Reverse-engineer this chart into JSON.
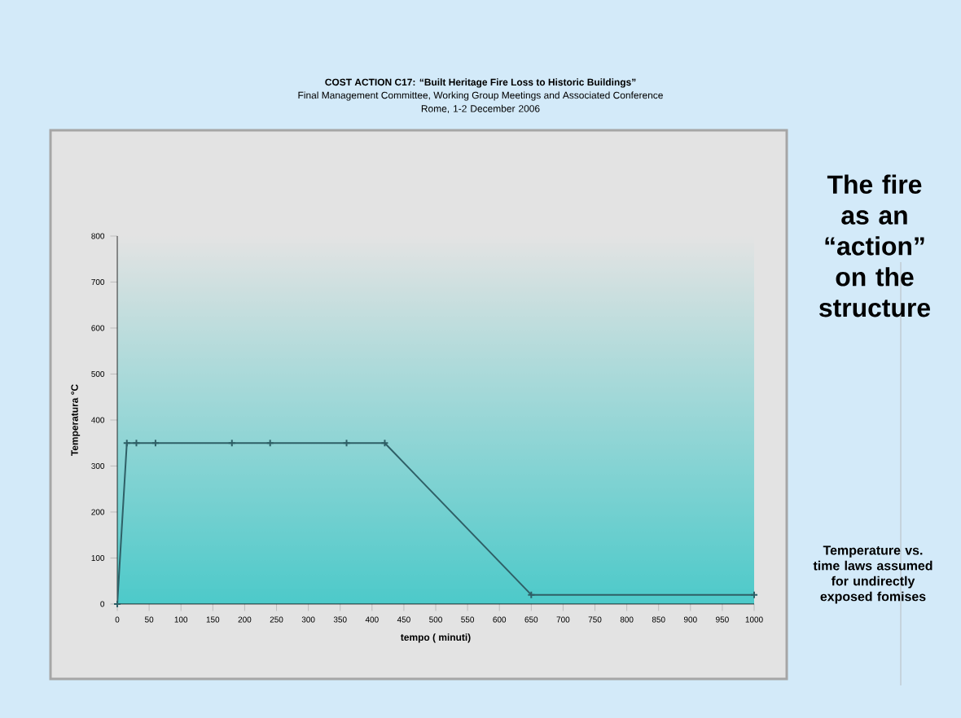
{
  "chart_data": {
    "type": "line",
    "title": "COST ACTION C17: “Built Heritage Fire Loss to Historic Buildings”",
    "subtitle": "Final Management Committee, Working Group Meetings and Associated Conference",
    "xlabel": "tempo ( minuti)",
    "ylabel": "Temperatura °C",
    "annotations": [
      "Rome, 1-2 December 2006",
      "The fire as an “action” on the structure",
      "Temperature vs. time laws assumed for undirectly exposed fomises"
    ],
    "x": [
      0,
      15,
      30,
      60,
      180,
      240,
      360,
      420,
      650,
      1000
    ],
    "series": [
      {
        "color": "#2f5f66",
        "values": [
          0,
          350,
          350,
          350,
          350,
          350,
          350,
          350,
          20,
          20
        ]
      }
    ],
    "xlim": [
      0,
      1000
    ],
    "xticks": [
      0,
      50,
      100,
      150,
      200,
      250,
      300,
      350,
      400,
      450,
      500,
      550,
      600,
      650,
      700,
      750,
      800,
      850,
      900,
      950,
      1000
    ],
    "ylim": [
      0,
      800
    ],
    "yticks": [
      0,
      100,
      200,
      300,
      400,
      500,
      600,
      700,
      800
    ],
    "marker": "cross",
    "line_style": "solid",
    "grid": false
  }
}
